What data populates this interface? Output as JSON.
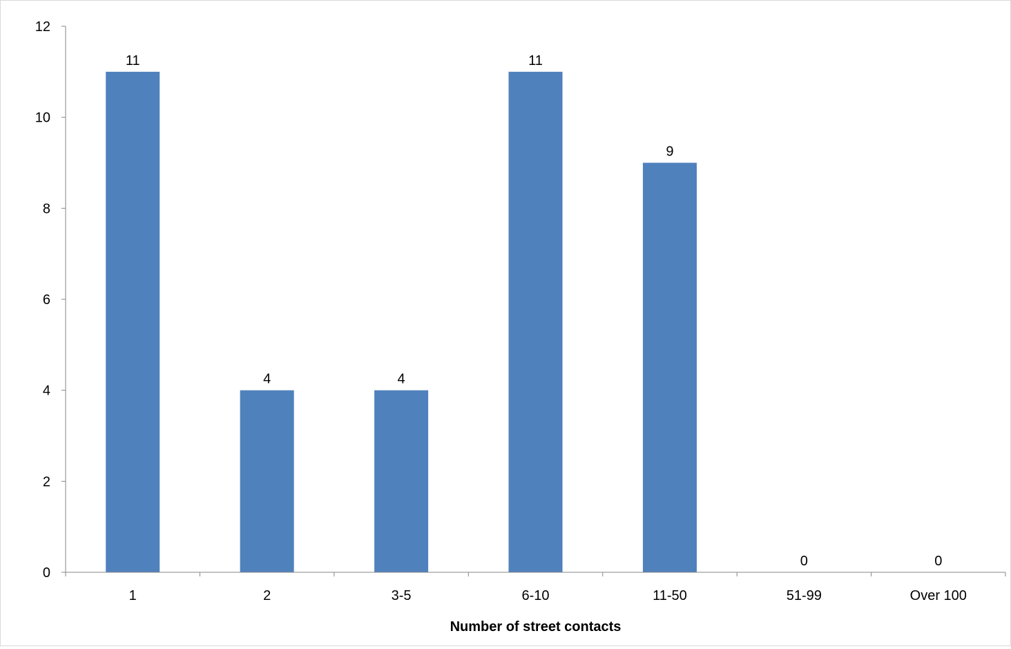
{
  "chart_data": {
    "type": "bar",
    "title": "",
    "xlabel": "Number of street contacts",
    "ylabel": "",
    "categories": [
      "1",
      "2",
      "3-5",
      "6-10",
      "11-50",
      "51-99",
      "Over 100"
    ],
    "values": [
      11,
      4,
      4,
      11,
      9,
      0,
      0
    ],
    "ylim": [
      0,
      12
    ],
    "yticks": [
      "0",
      "2",
      "4",
      "6",
      "8",
      "10",
      "12"
    ],
    "grid": false,
    "legend": "none",
    "bar_color": "#4F81BD",
    "axis_color": "#868686"
  }
}
